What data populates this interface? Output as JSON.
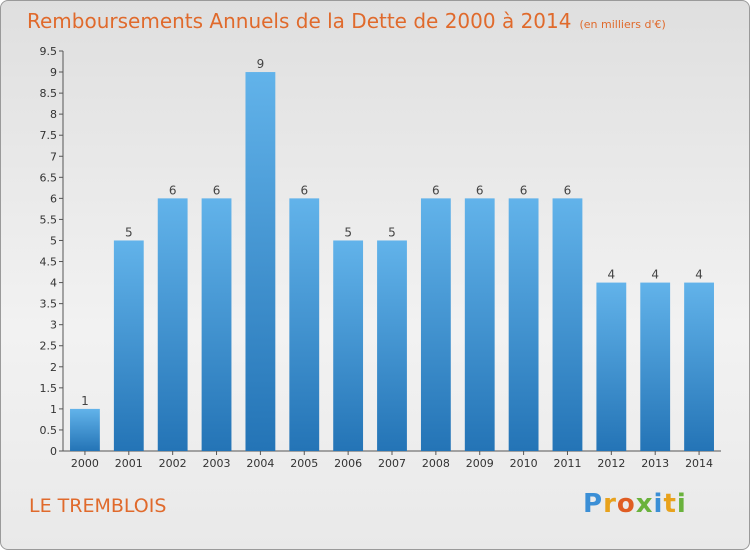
{
  "header": {
    "title": "Remboursements Annuels de la Dette de 2000 à 2014",
    "unit": "(en milliers d'€)"
  },
  "footer": {
    "commune": "LE TREMBLOIS",
    "logo": "Proxiti"
  },
  "colors": {
    "title": "#e06a2c",
    "bar_top": "#62b3ea",
    "bar_bottom": "#2474b6",
    "logo_letters": [
      "#3b8fd6",
      "#e8a21c",
      "#e05d23",
      "#6ab23c",
      "#3b8fd6",
      "#e8a21c",
      "#6ab23c"
    ]
  },
  "chart_data": {
    "type": "bar",
    "title": "Remboursements Annuels de la Dette de 2000 à 2014",
    "xlabel": "",
    "ylabel": "",
    "ylim": [
      0,
      9.5
    ],
    "yticks": [
      0,
      0.5,
      1,
      1.5,
      2,
      2.5,
      3,
      3.5,
      4,
      4.5,
      5,
      5.5,
      6,
      6.5,
      7,
      7.5,
      8,
      8.5,
      9,
      9.5
    ],
    "grid": false,
    "categories": [
      "2000",
      "2001",
      "2002",
      "2003",
      "2004",
      "2005",
      "2006",
      "2007",
      "2008",
      "2009",
      "2010",
      "2011",
      "2012",
      "2013",
      "2014"
    ],
    "values": [
      1,
      5,
      6,
      6,
      9,
      6,
      5,
      5,
      6,
      6,
      6,
      6,
      4,
      4,
      4
    ],
    "data_labels": [
      "1",
      "5",
      "6",
      "6",
      "9",
      "6",
      "5",
      "5",
      "6",
      "6",
      "6",
      "6",
      "4",
      "4",
      "4"
    ]
  }
}
